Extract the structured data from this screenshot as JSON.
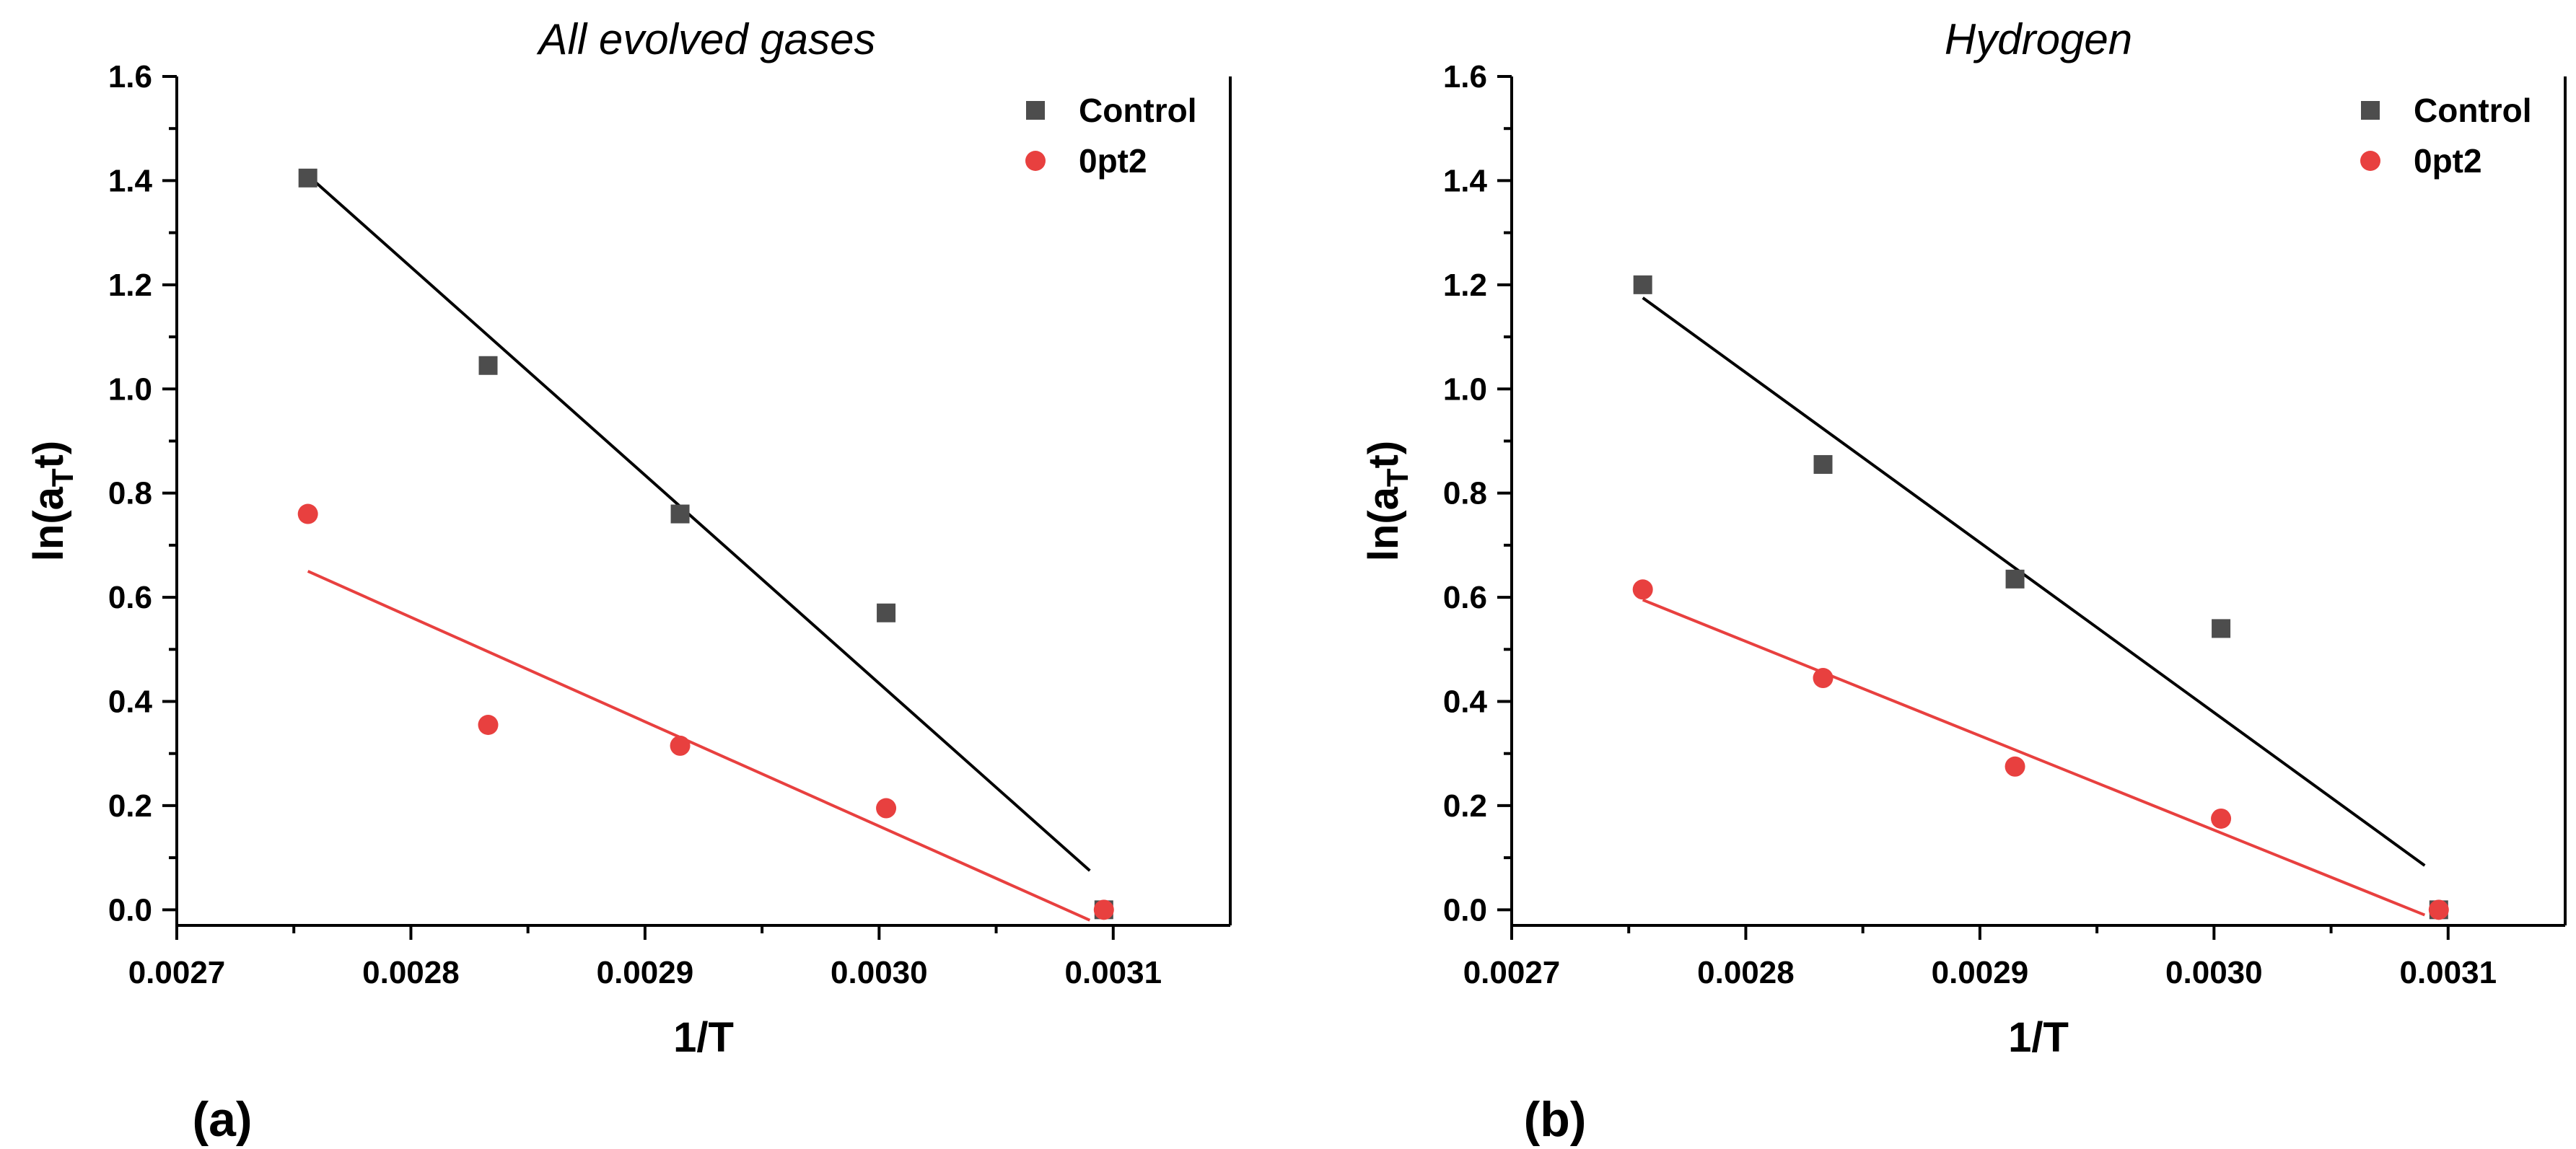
{
  "chart_data": [
    {
      "type": "scatter",
      "panel_label": "(a)",
      "title": "All evolved gases",
      "xlabel": "1/T",
      "ylabel": {
        "main": "ln(a",
        "sub": "T",
        "end": "t)"
      },
      "xlim": [
        0.0027,
        0.00315
      ],
      "ylim": [
        -0.03,
        1.6
      ],
      "x_ticks": [
        "0.0027",
        "0.0028",
        "0.0029",
        "0.0030",
        "0.0031"
      ],
      "y_ticks": [
        "0.0",
        "0.2",
        "0.4",
        "0.6",
        "0.8",
        "1.0",
        "1.2",
        "1.4",
        "1.6"
      ],
      "legend_position": "top-right",
      "series": [
        {
          "name": "Control",
          "marker": "square",
          "color": "#4d4d4d",
          "line_color": "#000000",
          "x": [
            0.002756,
            0.002833,
            0.002915,
            0.003003,
            0.003096
          ],
          "y": [
            1.405,
            1.045,
            0.76,
            0.57,
            0.0
          ],
          "fit": {
            "x": [
              0.002756,
              0.00309
            ],
            "y": [
              1.41,
              0.075
            ]
          }
        },
        {
          "name": "0pt2",
          "marker": "circle",
          "color": "#e8403f",
          "line_color": "#e8403f",
          "x": [
            0.002756,
            0.002833,
            0.002915,
            0.003003,
            0.003096
          ],
          "y": [
            0.76,
            0.355,
            0.315,
            0.195,
            0.0
          ],
          "fit": {
            "x": [
              0.002756,
              0.00309
            ],
            "y": [
              0.65,
              -0.02
            ]
          }
        }
      ]
    },
    {
      "type": "scatter",
      "panel_label": "(b)",
      "title": "Hydrogen",
      "xlabel": "1/T",
      "ylabel": {
        "main": "ln(a",
        "sub": "T",
        "end": "t)"
      },
      "xlim": [
        0.0027,
        0.00315
      ],
      "ylim": [
        -0.03,
        1.6
      ],
      "x_ticks": [
        "0.0027",
        "0.0028",
        "0.0029",
        "0.0030",
        "0.0031"
      ],
      "y_ticks": [
        "0.0",
        "0.2",
        "0.4",
        "0.6",
        "0.8",
        "1.0",
        "1.2",
        "1.4",
        "1.6"
      ],
      "legend_position": "top-right",
      "series": [
        {
          "name": "Control",
          "marker": "square",
          "color": "#4d4d4d",
          "line_color": "#000000",
          "x": [
            0.002756,
            0.002833,
            0.002915,
            0.003003,
            0.003096
          ],
          "y": [
            1.2,
            0.855,
            0.635,
            0.54,
            0.0
          ],
          "fit": {
            "x": [
              0.002756,
              0.00309
            ],
            "y": [
              1.175,
              0.085
            ]
          }
        },
        {
          "name": "0pt2",
          "marker": "circle",
          "color": "#e8403f",
          "line_color": "#e8403f",
          "x": [
            0.002756,
            0.002833,
            0.002915,
            0.003003,
            0.003096
          ],
          "y": [
            0.615,
            0.445,
            0.275,
            0.175,
            0.0
          ],
          "fit": {
            "x": [
              0.002756,
              0.00309
            ],
            "y": [
              0.595,
              -0.01
            ]
          }
        }
      ]
    }
  ]
}
